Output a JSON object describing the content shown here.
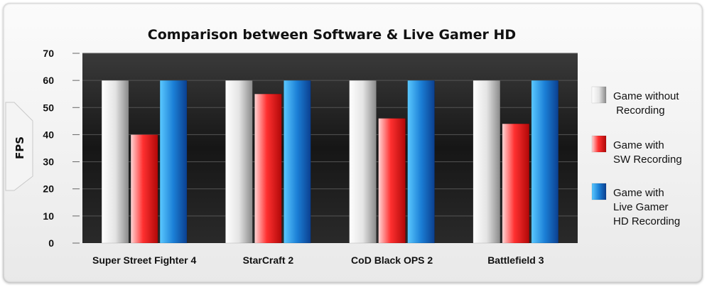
{
  "chart_data": {
    "type": "bar",
    "title": "Comparison between Software & Live Gamer HD",
    "xlabel": "",
    "ylabel": "FPS",
    "ylim": [
      0,
      70
    ],
    "yticks": [
      0,
      10,
      20,
      30,
      40,
      50,
      60,
      70
    ],
    "categories": [
      "Super Street Fighter 4",
      "StarCraft 2",
      "CoD Black OPS 2",
      "Battlefield 3"
    ],
    "series": [
      {
        "name": "Game without Recording",
        "legend_lines": [
          "Game without",
          " Recording"
        ],
        "values": [
          60,
          60,
          60,
          60
        ],
        "color": "#bdbdbd"
      },
      {
        "name": "Game with SW Recording",
        "legend_lines": [
          "Game with",
          "SW Recording"
        ],
        "values": [
          40,
          55,
          46,
          44
        ],
        "color": "#e31e1e"
      },
      {
        "name": "Game with Live Gamer HD Recording",
        "legend_lines": [
          "Game with",
          "Live Gamer",
          "HD Recording"
        ],
        "values": [
          60,
          60,
          60,
          60
        ],
        "color": "#1a74c4"
      }
    ],
    "grid": true,
    "legend_position": "right",
    "plot_background": "#1e1e1e"
  }
}
